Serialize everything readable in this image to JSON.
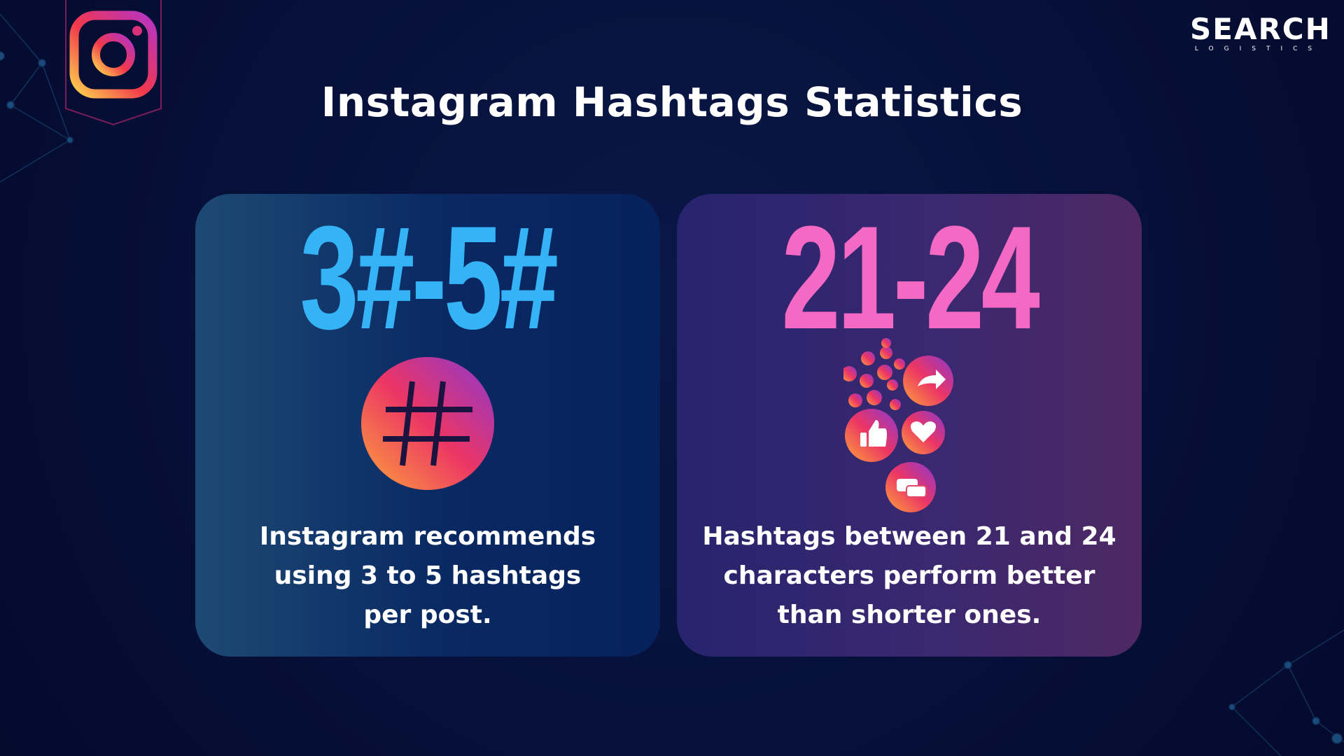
{
  "header": {
    "title": "Instagram Hashtags Statistics",
    "brand": {
      "name": "SEARCH",
      "tagline": "LOGISTICS"
    }
  },
  "cards": [
    {
      "stat": "3#-5#",
      "description": [
        "Instagram recommends",
        "using 3 to 5 hashtags",
        "per post."
      ]
    },
    {
      "stat": "21-24",
      "description": [
        "Hashtags between 21 and 24",
        "characters perform better",
        "than shorter ones."
      ]
    }
  ]
}
